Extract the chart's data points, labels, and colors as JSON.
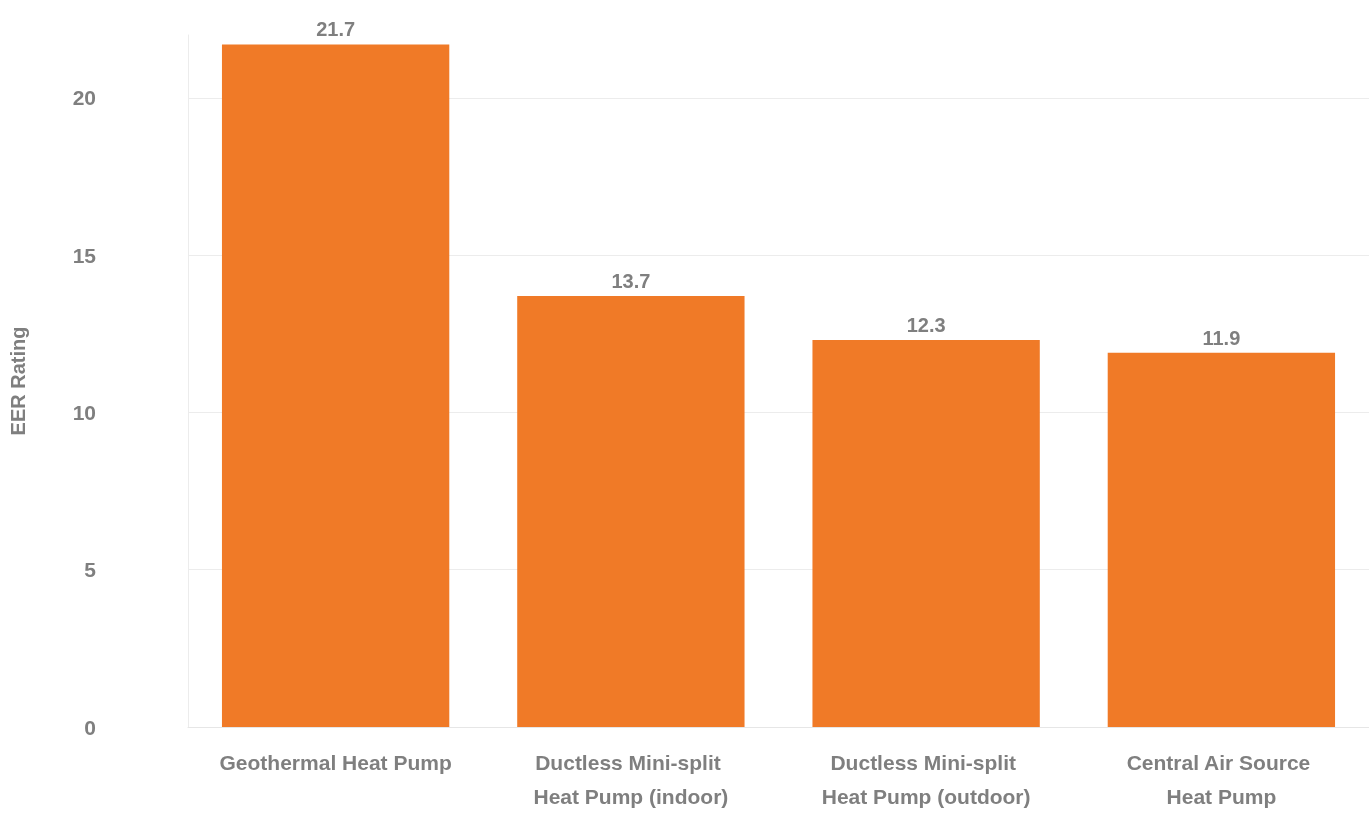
{
  "chart_data": {
    "type": "bar",
    "ylabel": "EER Rating",
    "categories": [
      "Geothermal Heat Pump",
      "Ductless Mini-split Heat Pump (indoor)",
      "Ductless Mini-split Heat Pump (outdoor)",
      "Central Air Source Heat Pump"
    ],
    "values": [
      21.7,
      13.7,
      12.3,
      11.9
    ],
    "color": "#f07a27",
    "ylim": [
      0,
      22
    ],
    "yticks": [
      0,
      5,
      10,
      15,
      20
    ],
    "grid": "y",
    "data_labels": true
  }
}
